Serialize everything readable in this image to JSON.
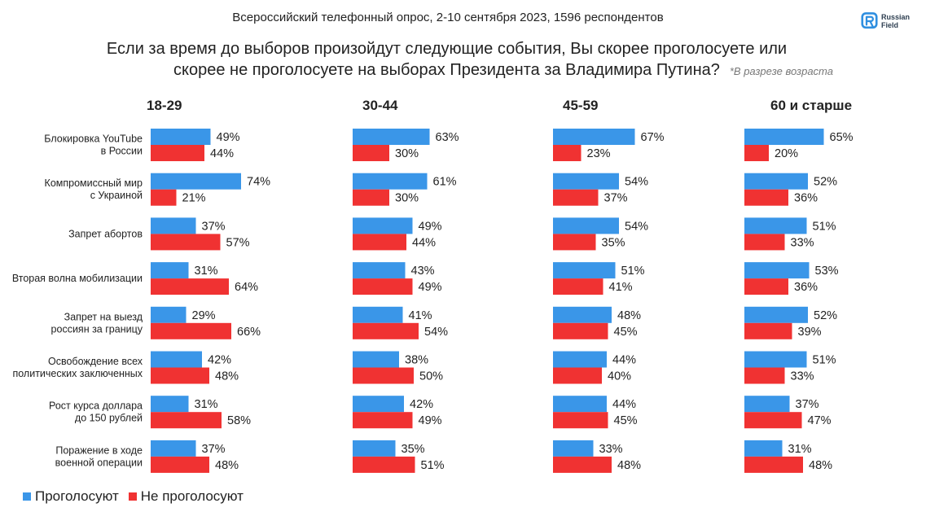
{
  "header": {
    "subtitle": "Всероссийский телефонный опрос, 2-10 сентября 2023, 1596 респондентов",
    "title_line1": "Если за время до выборов произойдут следующие события, Вы скорее проголосуете или",
    "title_line2": "скорее не проголосуете на выборах Президента за Владимира Путина?",
    "note": "*В разрезе возраста"
  },
  "logo": {
    "line1": "Russian",
    "line2": "Field"
  },
  "colors": {
    "yes": "#3a96e8",
    "no": "#f03232"
  },
  "legend": {
    "yes": "Проголосуют",
    "no": "Не проголосуют"
  },
  "chart_data": {
    "type": "bar",
    "orientation": "horizontal",
    "categories": [
      [
        "Блокировка YouTube",
        "в России"
      ],
      [
        "Компромиссный мир",
        "с Украиной"
      ],
      [
        "Запрет абортов"
      ],
      [
        "Вторая волна мобилизации"
      ],
      [
        "Запрет на выезд",
        "россиян за границу"
      ],
      [
        "Освобождение всех",
        "политических заключенных"
      ],
      [
        "Рост курса доллара",
        "до 150 рублей"
      ],
      [
        "Поражение в ходе",
        "военной операции"
      ]
    ],
    "panels": [
      {
        "title": "18-29",
        "yes": [
          49,
          74,
          37,
          31,
          29,
          42,
          31,
          37
        ],
        "no": [
          44,
          21,
          57,
          64,
          66,
          48,
          58,
          48
        ]
      },
      {
        "title": "30-44",
        "yes": [
          63,
          61,
          49,
          43,
          41,
          38,
          42,
          35
        ],
        "no": [
          30,
          30,
          44,
          49,
          54,
          50,
          49,
          51
        ]
      },
      {
        "title": "45-59",
        "yes": [
          67,
          54,
          54,
          51,
          48,
          44,
          44,
          33
        ],
        "no": [
          23,
          37,
          35,
          41,
          45,
          40,
          45,
          48
        ]
      },
      {
        "title": "60 и старше",
        "yes": [
          65,
          52,
          51,
          53,
          52,
          51,
          37,
          31
        ],
        "no": [
          20,
          36,
          33,
          36,
          39,
          33,
          47,
          48
        ]
      }
    ],
    "unit": "%",
    "series": [
      {
        "name": "Проголосуют",
        "key": "yes"
      },
      {
        "name": "Не проголосуют",
        "key": "no"
      }
    ]
  }
}
